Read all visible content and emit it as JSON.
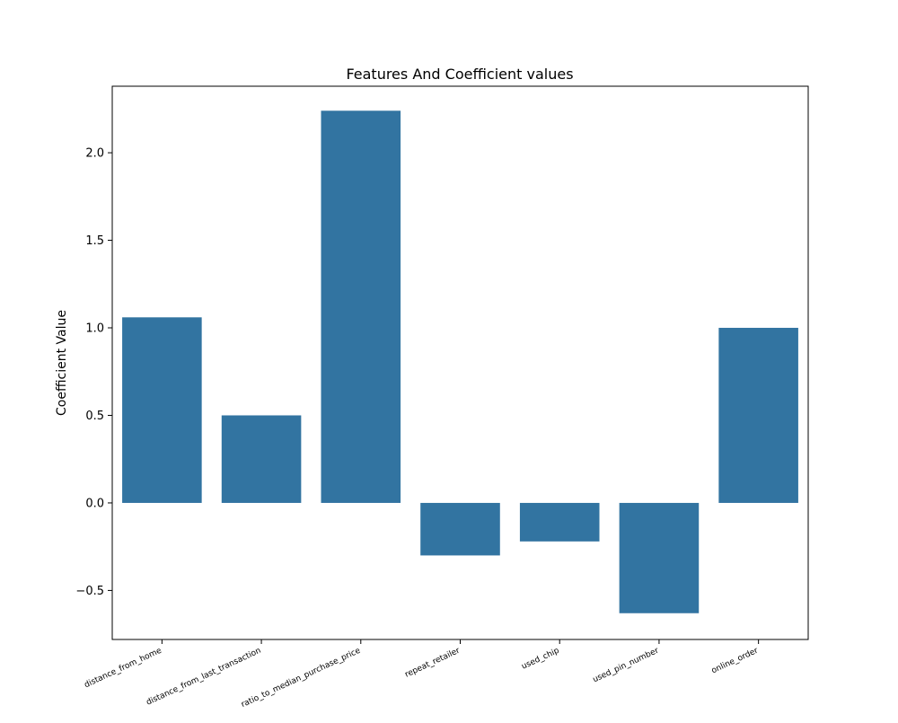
{
  "chart_data": {
    "type": "bar",
    "title": "Features And Coefficient values",
    "xlabel": "",
    "ylabel": "Coefficient Value",
    "categories": [
      "distance_from_home",
      "distance_from_last_transaction",
      "ratio_to_median_purchase_price",
      "repeat_retailer",
      "used_chip",
      "used_pin_number",
      "online_order"
    ],
    "values": [
      1.06,
      0.5,
      2.24,
      -0.3,
      -0.22,
      -0.63,
      1.0
    ],
    "ylim": [
      -0.78,
      2.38
    ],
    "yticks": [
      -0.5,
      0.0,
      0.5,
      1.0,
      1.5,
      2.0
    ],
    "ytick_labels": [
      "−0.5",
      "0.0",
      "0.5",
      "1.0",
      "1.5",
      "2.0"
    ],
    "bar_color": "#3274a1",
    "grid": false,
    "legend": "none"
  }
}
